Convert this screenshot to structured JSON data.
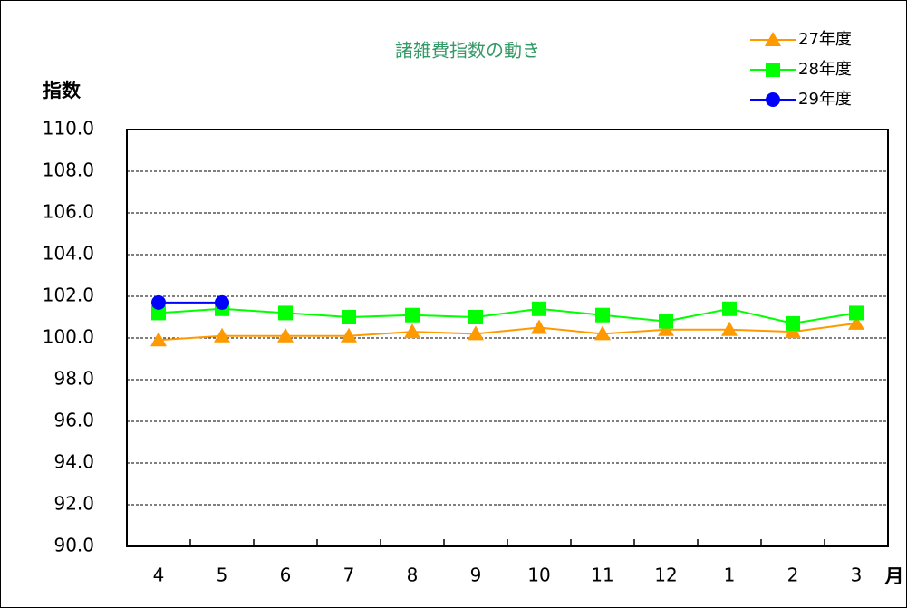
{
  "chart_data": {
    "type": "line",
    "title": "諸雑費指数の動き",
    "y_label": "指数",
    "x_label": "月",
    "categories": [
      "4",
      "5",
      "6",
      "7",
      "8",
      "9",
      "10",
      "11",
      "12",
      "1",
      "2",
      "3"
    ],
    "series": [
      {
        "name": "27年度",
        "color": "#FF9900",
        "marker": "triangle",
        "values": [
          99.9,
          100.1,
          100.1,
          100.1,
          100.3,
          100.2,
          100.5,
          100.2,
          100.4,
          100.4,
          100.3,
          100.7
        ]
      },
      {
        "name": "28年度",
        "color": "#00FF00",
        "marker": "square",
        "values": [
          101.2,
          101.4,
          101.2,
          101.0,
          101.1,
          101.0,
          101.4,
          101.1,
          100.8,
          101.4,
          100.7,
          101.2
        ]
      },
      {
        "name": "29年度",
        "color": "#0000FF",
        "marker": "circle",
        "values": [
          101.7,
          101.7,
          null,
          null,
          null,
          null,
          null,
          null,
          null,
          null,
          null,
          null
        ]
      }
    ],
    "ylim": [
      90,
      110
    ],
    "yticks": [
      {
        "value": 90,
        "label": "90.0"
      },
      {
        "value": 92,
        "label": "92.0"
      },
      {
        "value": 94,
        "label": "94.0"
      },
      {
        "value": 96,
        "label": "96.0"
      },
      {
        "value": 98,
        "label": "98.0"
      },
      {
        "value": 100,
        "label": "100.0"
      },
      {
        "value": 102,
        "label": "102.0"
      },
      {
        "value": 104,
        "label": "104.0"
      },
      {
        "value": 106,
        "label": "106.0"
      },
      {
        "value": 108,
        "label": "108.0"
      },
      {
        "value": 110,
        "label": "110.0"
      }
    ],
    "grid": true,
    "legend": "top-right"
  }
}
